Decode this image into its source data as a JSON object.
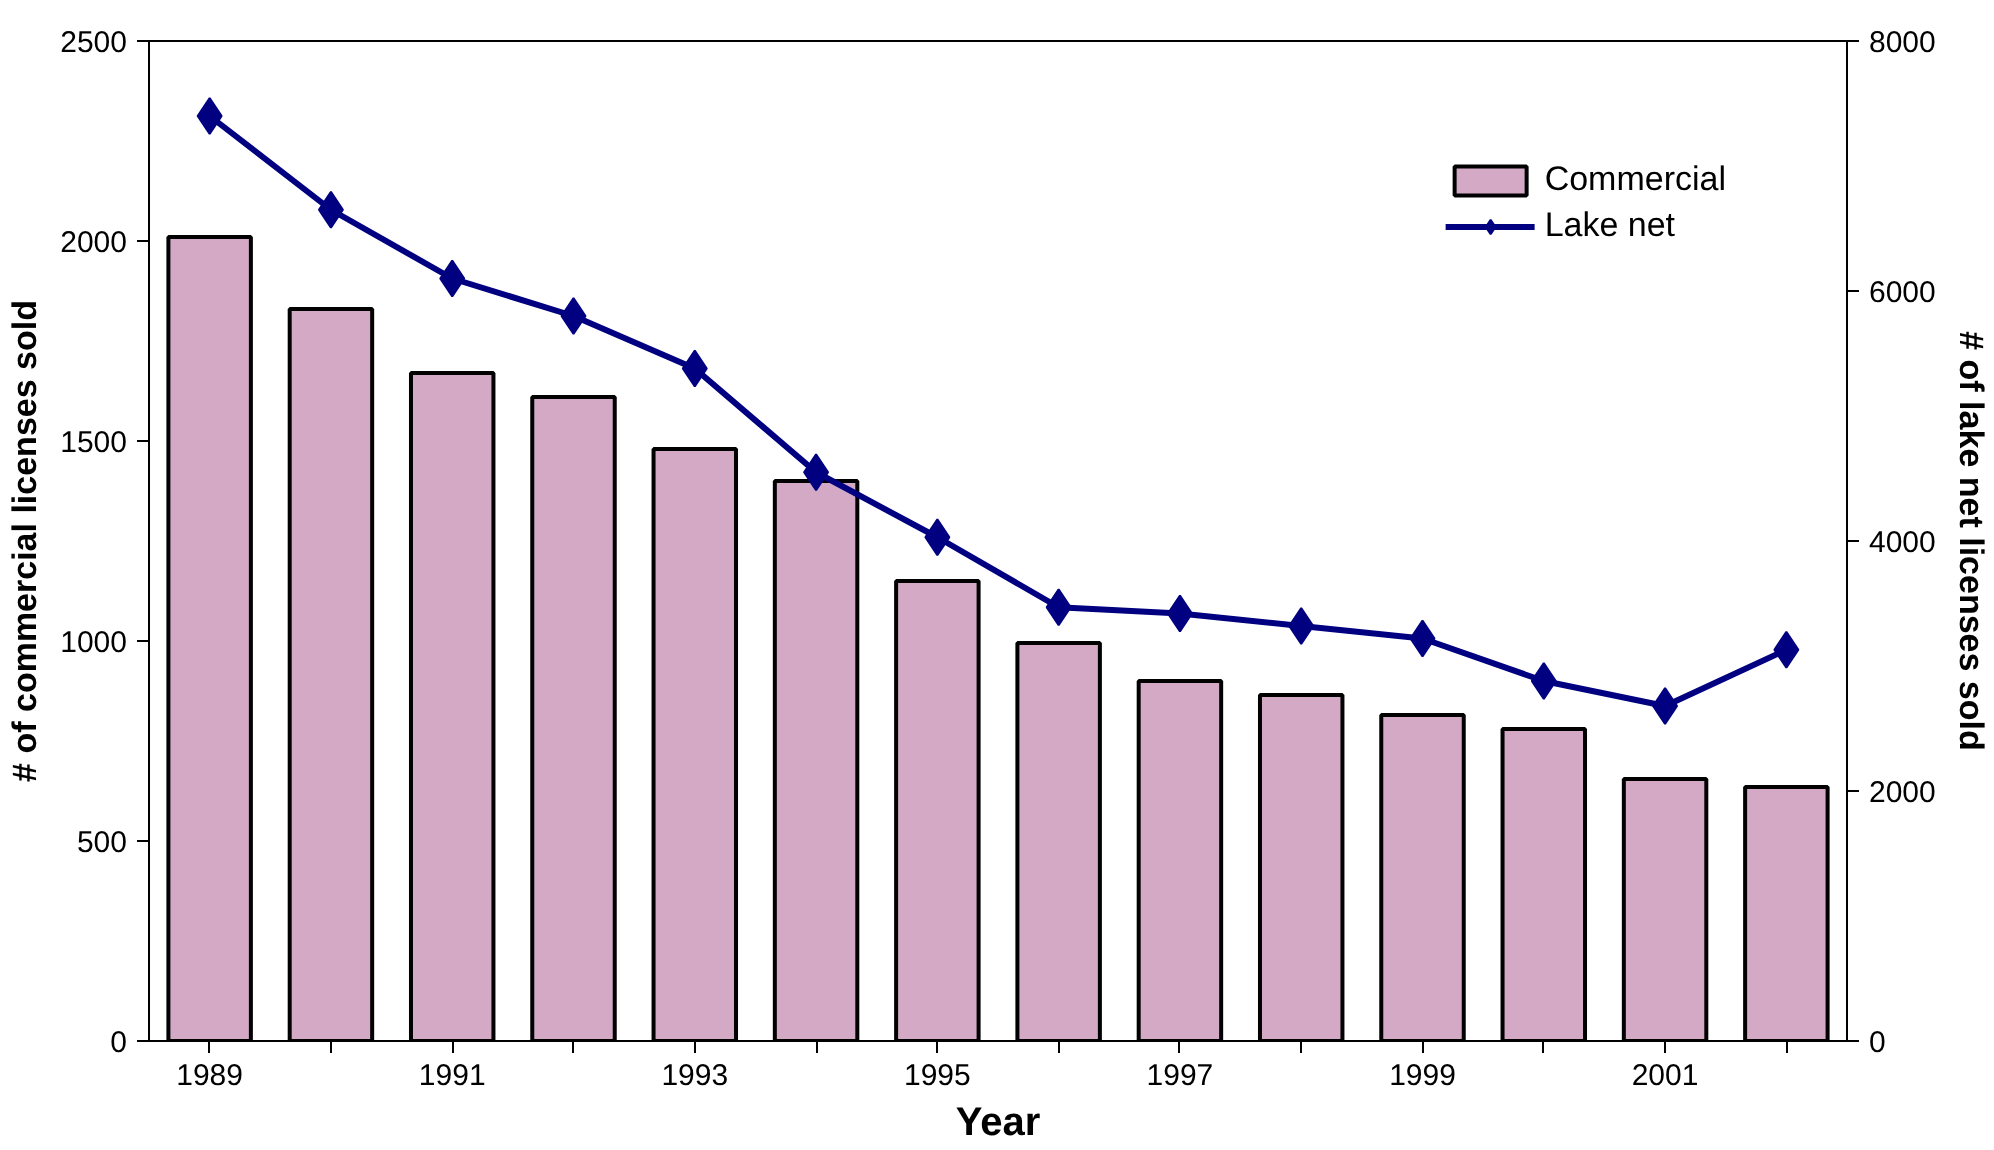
{
  "chart_data": {
    "type": "bar",
    "xlabel": "Year",
    "ylabel": "# of commercial licenses sold",
    "y2label": "# of lake net licenses sold",
    "categories": [
      "1989",
      null,
      "1991",
      null,
      "1993",
      null,
      "1995",
      null,
      "1997",
      null,
      "1999",
      null,
      "2001",
      null
    ],
    "series": [
      {
        "name": "Commercial",
        "color": "#d4a9c6",
        "values": [
          2010,
          1830,
          1670,
          1610,
          1480,
          1400,
          1150,
          995,
          900,
          865,
          815,
          780,
          655,
          635
        ]
      },
      {
        "name": "Lake net",
        "type": "line",
        "axis": "y2",
        "color": "#000080",
        "marker": "diamond",
        "values": [
          7400,
          6650,
          6100,
          5800,
          5380,
          4550,
          4030,
          3470,
          3420,
          3320,
          3220,
          2880,
          2680,
          3130
        ]
      }
    ],
    "ylim": [
      0,
      2500
    ],
    "yticks": [
      0,
      500,
      1000,
      1500,
      2000,
      2500
    ],
    "y2lim": [
      0,
      8000
    ],
    "y2ticks": [
      0,
      2000,
      4000,
      6000,
      8000
    ],
    "grid": false,
    "legend": "top right"
  }
}
